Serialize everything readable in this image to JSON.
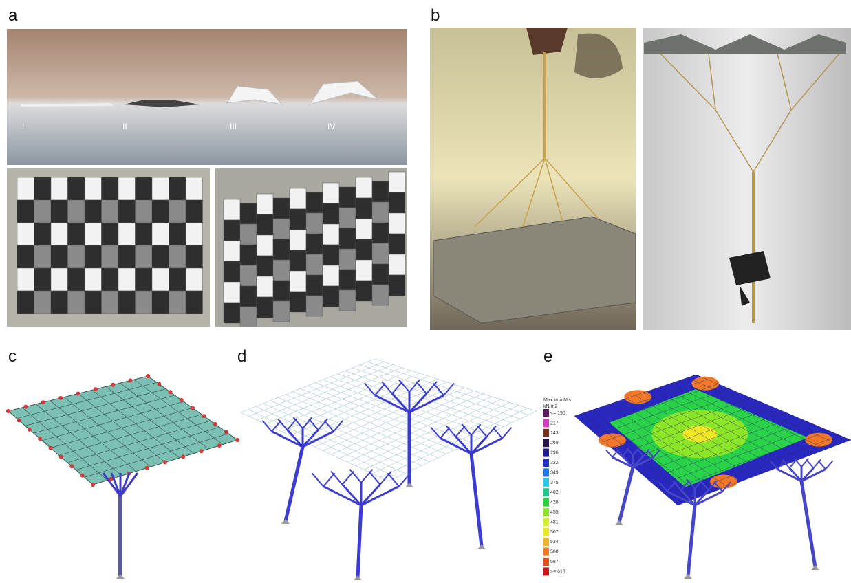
{
  "panels": {
    "a": {
      "label": "a",
      "stage_labels": [
        "I",
        "II",
        "III",
        "IV"
      ]
    },
    "b": {
      "label": "b"
    },
    "c": {
      "label": "c"
    },
    "d": {
      "label": "d"
    },
    "e": {
      "label": "e",
      "legend": {
        "title": [
          "Max Von Mis",
          "kN/m2"
        ],
        "entries": [
          {
            "label": "<= 190",
            "color": "#5c1a5c"
          },
          {
            "label": "217",
            "color": "#d23cc8"
          },
          {
            "label": "243",
            "color": "#7a2e1e"
          },
          {
            "label": "269",
            "color": "#2a1450"
          },
          {
            "label": "296",
            "color": "#1c1c8c"
          },
          {
            "label": "322",
            "color": "#2030c8"
          },
          {
            "label": "349",
            "color": "#1e78e6"
          },
          {
            "label": "375",
            "color": "#28c8e6"
          },
          {
            "label": "402",
            "color": "#1ec88c"
          },
          {
            "label": "428",
            "color": "#28d23c"
          },
          {
            "label": "455",
            "color": "#8ce628"
          },
          {
            "label": "481",
            "color": "#d2f028"
          },
          {
            "label": "507",
            "color": "#f0e628"
          },
          {
            "label": "534",
            "color": "#f0b428"
          },
          {
            "label": "560",
            "color": "#f07828"
          },
          {
            "label": "587",
            "color": "#e64a1e"
          },
          {
            "label": ">= 613",
            "color": "#d21414"
          }
        ]
      }
    }
  }
}
